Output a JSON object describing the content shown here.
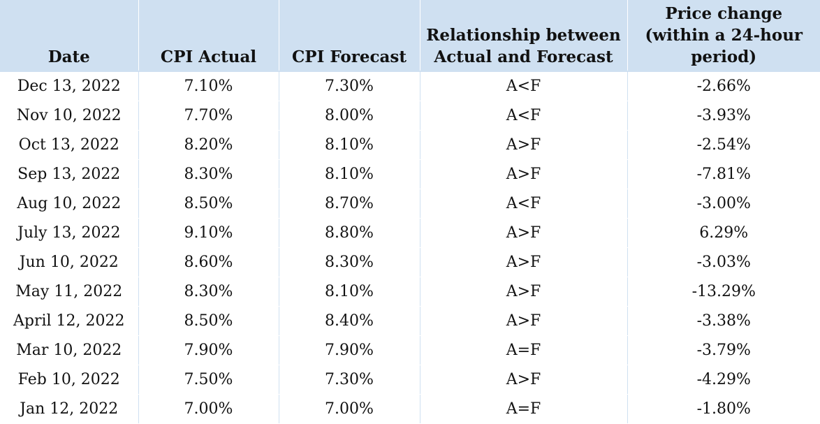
{
  "table": {
    "headers": [
      "Date",
      "CPI Actual",
      "CPI Forecast",
      "Relationship between Actual and Forecast",
      "Price change (within a 24-hour period)"
    ],
    "rows": [
      [
        "Dec 13, 2022",
        "7.10%",
        "7.30%",
        "A<F",
        "-2.66%"
      ],
      [
        "Nov 10, 2022",
        "7.70%",
        "8.00%",
        "A<F",
        "-3.93%"
      ],
      [
        "Oct 13, 2022",
        "8.20%",
        "8.10%",
        "A>F",
        "-2.54%"
      ],
      [
        "Sep 13, 2022",
        "8.30%",
        "8.10%",
        "A>F",
        "-7.81%"
      ],
      [
        "Aug 10, 2022",
        "8.50%",
        "8.70%",
        "A<F",
        "-3.00%"
      ],
      [
        "July 13, 2022",
        "9.10%",
        "8.80%",
        "A>F",
        "6.29%"
      ],
      [
        "Jun 10, 2022",
        "8.60%",
        "8.30%",
        "A>F",
        "-3.03%"
      ],
      [
        "May 11, 2022",
        "8.30%",
        "8.10%",
        "A>F",
        "-13.29%"
      ],
      [
        "April 12, 2022",
        "8.50%",
        "8.40%",
        "A>F",
        "-3.38%"
      ],
      [
        "Mar 10, 2022",
        "7.90%",
        "7.90%",
        "A=F",
        "-3.79%"
      ],
      [
        "Feb 10, 2022",
        "7.50%",
        "7.30%",
        "A>F",
        "-4.29%"
      ],
      [
        "Jan 12, 2022",
        "7.00%",
        "7.00%",
        "A=F",
        "-1.80%"
      ]
    ]
  },
  "colors": {
    "header_background": "#cfe0f1",
    "grid_line": "#cfe0f1",
    "text": "#111111"
  }
}
